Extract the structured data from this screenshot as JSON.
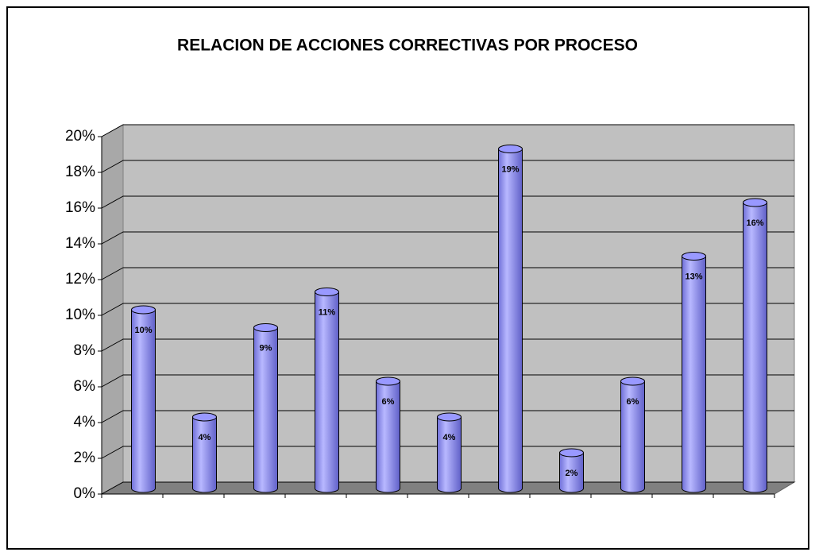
{
  "chart_data": {
    "type": "bar",
    "title": "RELACION DE ACCIONES CORRECTIVAS POR PROCESO",
    "categories": [
      null,
      null,
      null,
      null,
      null,
      null,
      null,
      null,
      null,
      null,
      null
    ],
    "values": [
      10,
      4,
      9,
      11,
      6,
      4,
      19,
      2,
      6,
      13,
      16
    ],
    "value_labels": [
      "10%",
      "4%",
      "9%",
      "11%",
      "6%",
      "4%",
      "19%",
      "2%",
      "6%",
      "13%",
      "16%"
    ],
    "color": "#9999ff",
    "ylim": [
      0,
      20
    ],
    "yticks": [
      {
        "value": 0,
        "label": "0%"
      },
      {
        "value": 2,
        "label": "2%"
      },
      {
        "value": 4,
        "label": "4%"
      },
      {
        "value": 6,
        "label": "6%"
      },
      {
        "value": 8,
        "label": "8%"
      },
      {
        "value": 10,
        "label": "10%"
      },
      {
        "value": 12,
        "label": "12%"
      },
      {
        "value": 14,
        "label": "14%"
      },
      {
        "value": 16,
        "label": "16%"
      },
      {
        "value": 18,
        "label": "18%"
      },
      {
        "value": 20,
        "label": "20%"
      }
    ],
    "grid": true
  }
}
